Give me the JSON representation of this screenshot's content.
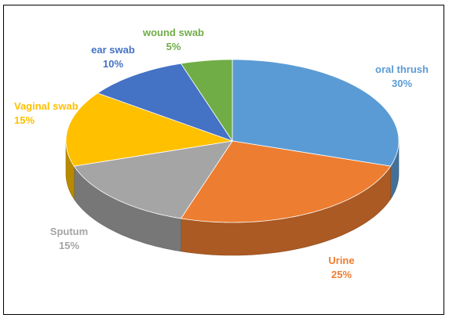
{
  "chart_data": {
    "type": "pie",
    "title": "",
    "slices": [
      {
        "label": "oral thrush",
        "value": 30,
        "display": "30%",
        "color": "#5B9BD5"
      },
      {
        "label": "Urine",
        "value": 25,
        "display": "25%",
        "color": "#ED7D31"
      },
      {
        "label": "Sputum",
        "value": 15,
        "display": "15%",
        "color": "#A5A5A5"
      },
      {
        "label": "Vaginal swab",
        "value": 15,
        "display": "15%",
        "color": "#FFC000"
      },
      {
        "label": "ear swab",
        "value": 10,
        "display": "10%",
        "color": "#4472C4"
      },
      {
        "label": "wound swab",
        "value": 5,
        "display": "5%",
        "color": "#70AD47"
      }
    ],
    "style": "3d-pie",
    "legend": "none"
  }
}
